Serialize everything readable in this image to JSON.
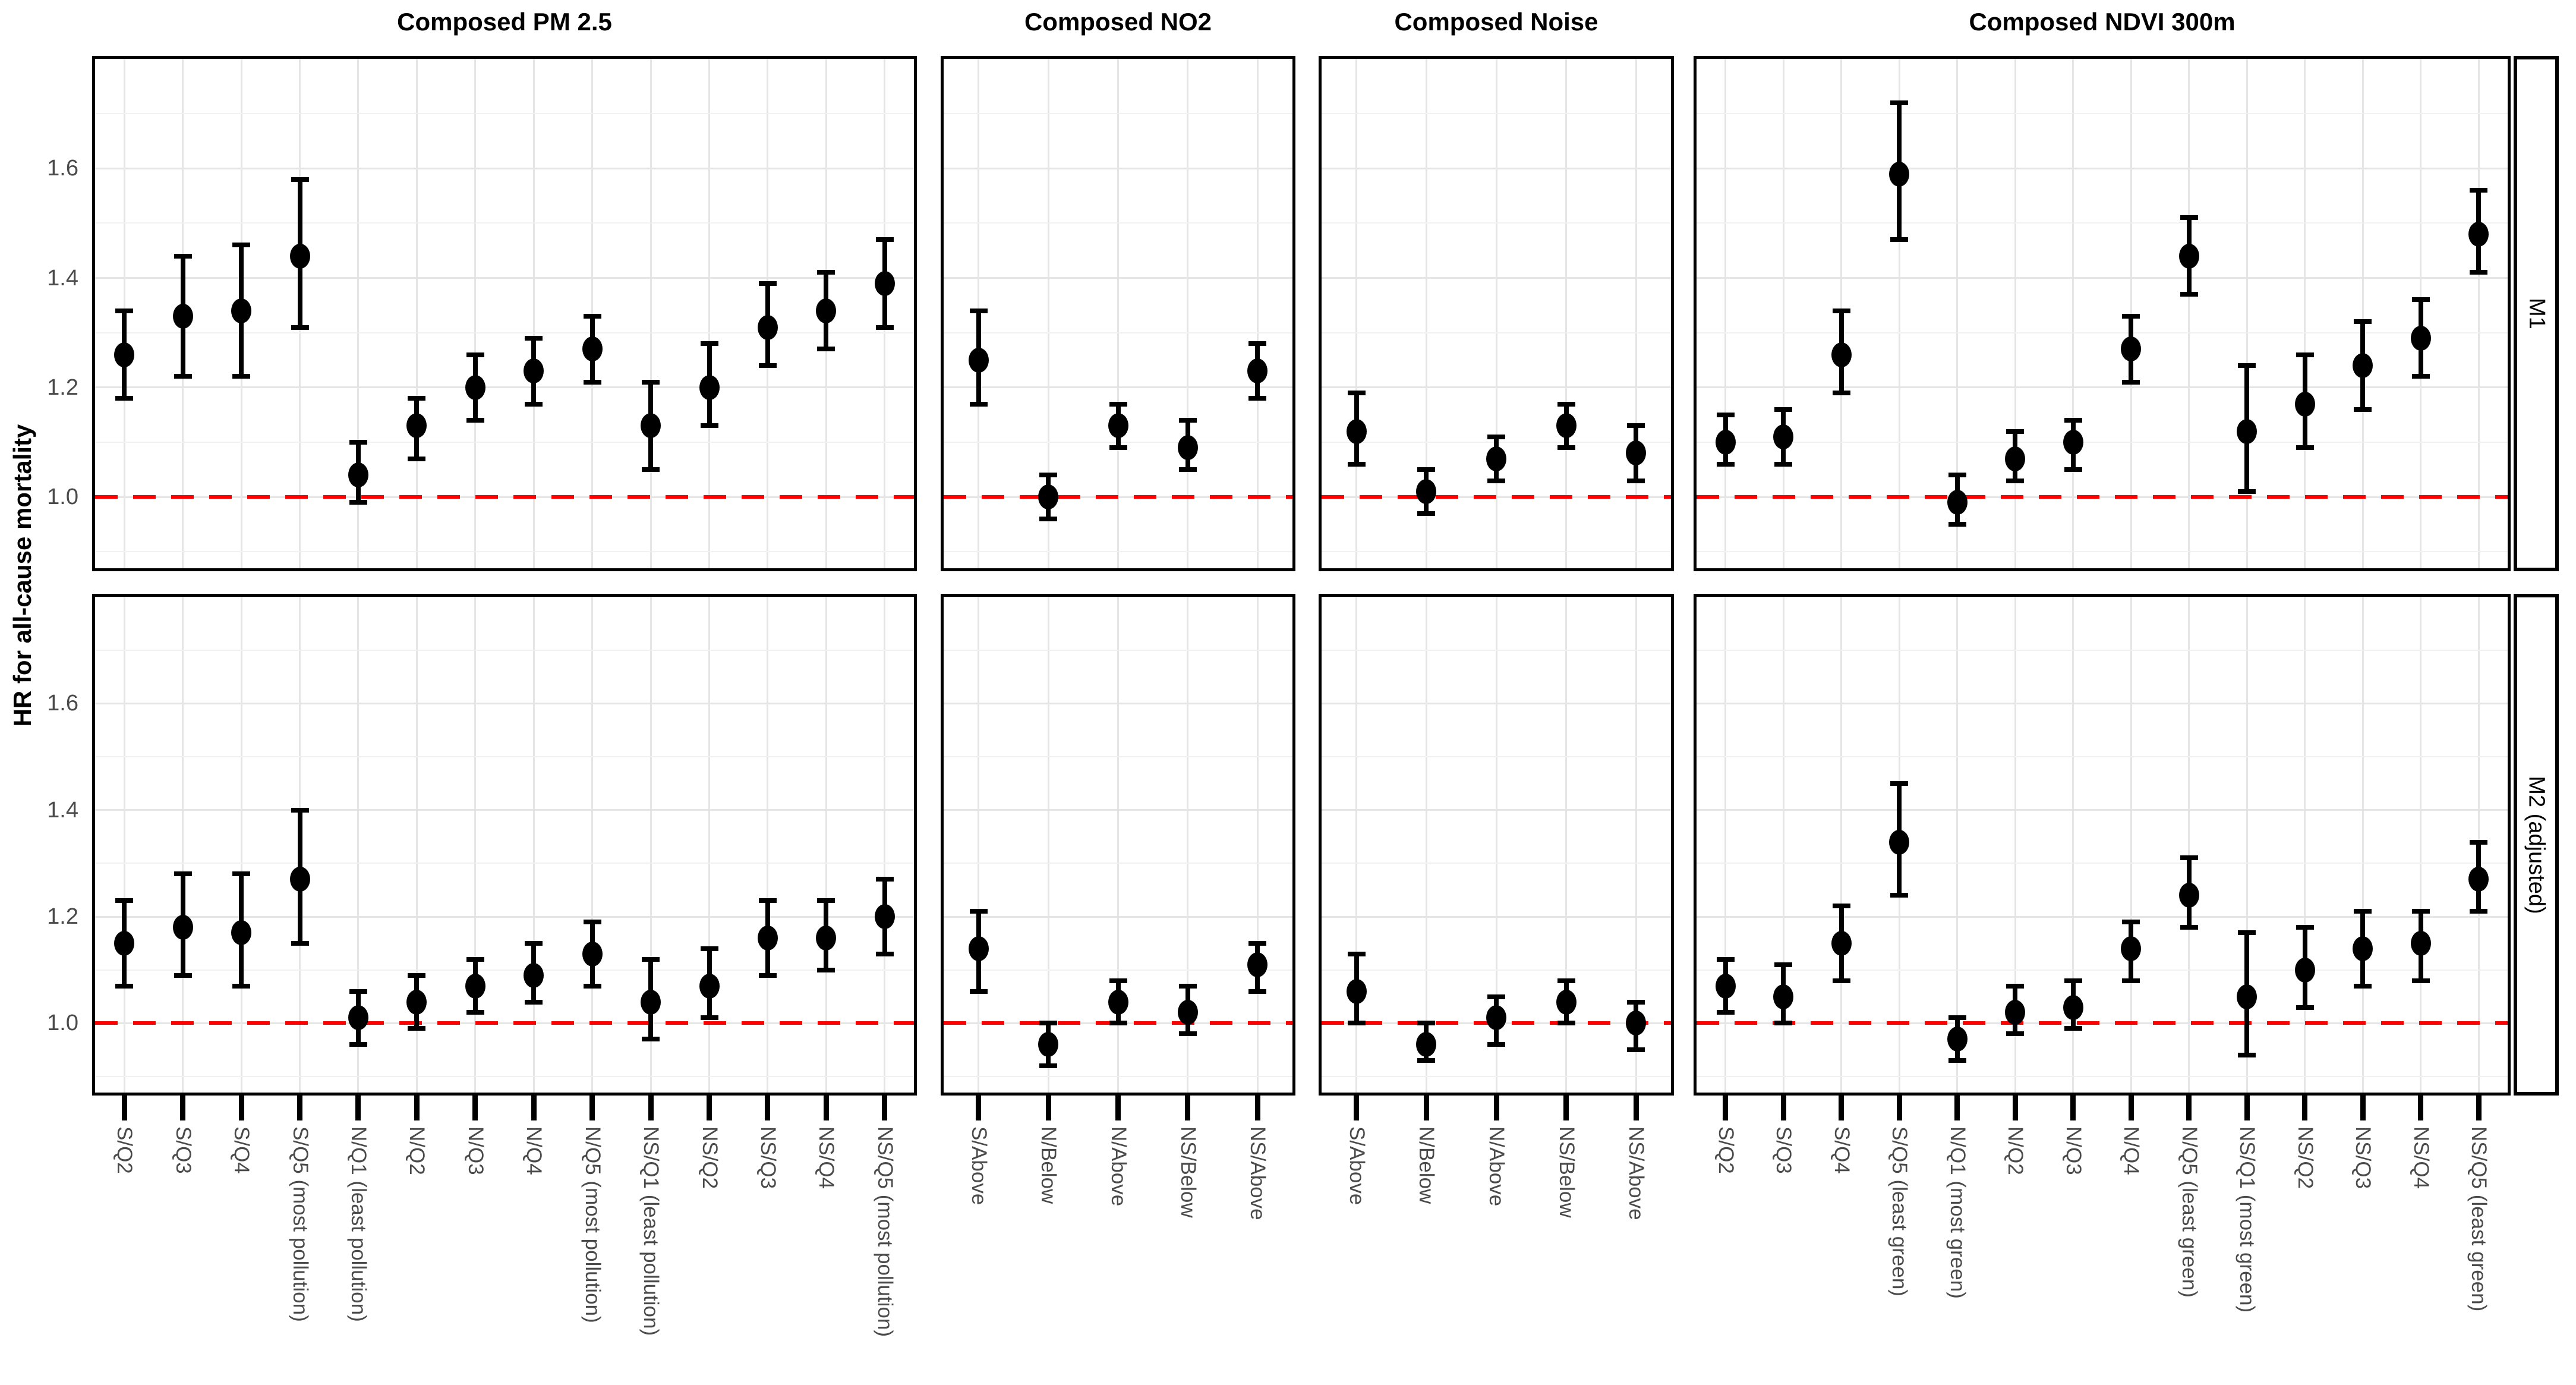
{
  "chart_data": {
    "type": "scatter",
    "subtype": "forest-plot-with-ci",
    "ylabel": "HR for all-cause mortality",
    "y_ticks": [
      1.0,
      1.2,
      1.4,
      1.6
    ],
    "y_tick_labels": [
      "1.0",
      "1.2",
      "1.4",
      "1.6"
    ],
    "y_minor_ticks": [
      0.9,
      1.1,
      1.3,
      1.5,
      1.7
    ],
    "ylim": [
      0.87,
      1.8
    ],
    "grid": true,
    "legend": false,
    "ref_line": {
      "y": 1.0,
      "style": "dashed",
      "color": "#FF0000"
    },
    "colors": {
      "point": "#000000",
      "error_bar": "#000000",
      "ref_line": "#FF0000",
      "grid_major": "#E5E5E5",
      "grid_minor": "#F1F1F1",
      "axis_text": "#4a4a4a",
      "panel_border": "#000000",
      "background": "#FFFFFF"
    },
    "rows": [
      {
        "label": "M1"
      },
      {
        "label": "M2 (adjusted)"
      }
    ],
    "columns": [
      {
        "title": "Composed PM 2.5",
        "categories": [
          "S/Q2",
          "S/Q3",
          "S/Q4",
          "S/Q5 (most pollution)",
          "N/Q1 (least pollution)",
          "N/Q2",
          "N/Q3",
          "N/Q4",
          "N/Q5 (most pollution)",
          "NS/Q1 (least pollution)",
          "NS/Q2",
          "NS/Q3",
          "NS/Q4",
          "NS/Q5 (most pollution)"
        ]
      },
      {
        "title": "Composed NO2",
        "categories": [
          "S/Above",
          "N/Below",
          "N/Above",
          "NS/Below",
          "NS/Above"
        ]
      },
      {
        "title": "Composed Noise",
        "categories": [
          "S/Above",
          "N/Below",
          "N/Above",
          "NS/Below",
          "NS/Above"
        ]
      },
      {
        "title": "Composed NDVI 300m",
        "categories": [
          "S/Q2",
          "S/Q3",
          "S/Q4",
          "S/Q5 (least green)",
          "N/Q1 (most green)",
          "N/Q2",
          "N/Q3",
          "N/Q4",
          "N/Q5 (least green)",
          "NS/Q1 (most green)",
          "NS/Q2",
          "NS/Q3",
          "NS/Q4",
          "NS/Q5 (least green)"
        ]
      }
    ],
    "panels": [
      {
        "row": "M1",
        "column": "Composed PM 2.5",
        "points": [
          {
            "category": "S/Q2",
            "hr": 1.26,
            "ci_low": 1.18,
            "ci_high": 1.34
          },
          {
            "category": "S/Q3",
            "hr": 1.33,
            "ci_low": 1.22,
            "ci_high": 1.44
          },
          {
            "category": "S/Q4",
            "hr": 1.34,
            "ci_low": 1.22,
            "ci_high": 1.46
          },
          {
            "category": "S/Q5 (most pollution)",
            "hr": 1.44,
            "ci_low": 1.31,
            "ci_high": 1.58
          },
          {
            "category": "N/Q1 (least pollution)",
            "hr": 1.04,
            "ci_low": 0.99,
            "ci_high": 1.1
          },
          {
            "category": "N/Q2",
            "hr": 1.13,
            "ci_low": 1.07,
            "ci_high": 1.18
          },
          {
            "category": "N/Q3",
            "hr": 1.2,
            "ci_low": 1.14,
            "ci_high": 1.26
          },
          {
            "category": "N/Q4",
            "hr": 1.23,
            "ci_low": 1.17,
            "ci_high": 1.29
          },
          {
            "category": "N/Q5 (most pollution)",
            "hr": 1.27,
            "ci_low": 1.21,
            "ci_high": 1.33
          },
          {
            "category": "NS/Q1 (least pollution)",
            "hr": 1.13,
            "ci_low": 1.05,
            "ci_high": 1.21
          },
          {
            "category": "NS/Q2",
            "hr": 1.2,
            "ci_low": 1.13,
            "ci_high": 1.28
          },
          {
            "category": "NS/Q3",
            "hr": 1.31,
            "ci_low": 1.24,
            "ci_high": 1.39
          },
          {
            "category": "NS/Q4",
            "hr": 1.34,
            "ci_low": 1.27,
            "ci_high": 1.41
          },
          {
            "category": "NS/Q5 (most pollution)",
            "hr": 1.39,
            "ci_low": 1.31,
            "ci_high": 1.47
          }
        ]
      },
      {
        "row": "M1",
        "column": "Composed NO2",
        "points": [
          {
            "category": "S/Above",
            "hr": 1.25,
            "ci_low": 1.17,
            "ci_high": 1.34
          },
          {
            "category": "N/Below",
            "hr": 1.0,
            "ci_low": 0.96,
            "ci_high": 1.04
          },
          {
            "category": "N/Above",
            "hr": 1.13,
            "ci_low": 1.09,
            "ci_high": 1.17
          },
          {
            "category": "NS/Below",
            "hr": 1.09,
            "ci_low": 1.05,
            "ci_high": 1.14
          },
          {
            "category": "NS/Above",
            "hr": 1.23,
            "ci_low": 1.18,
            "ci_high": 1.28
          }
        ]
      },
      {
        "row": "M1",
        "column": "Composed Noise",
        "points": [
          {
            "category": "S/Above",
            "hr": 1.12,
            "ci_low": 1.06,
            "ci_high": 1.19
          },
          {
            "category": "N/Below",
            "hr": 1.01,
            "ci_low": 0.97,
            "ci_high": 1.05
          },
          {
            "category": "N/Above",
            "hr": 1.07,
            "ci_low": 1.03,
            "ci_high": 1.11
          },
          {
            "category": "NS/Below",
            "hr": 1.13,
            "ci_low": 1.09,
            "ci_high": 1.17
          },
          {
            "category": "NS/Above",
            "hr": 1.08,
            "ci_low": 1.03,
            "ci_high": 1.13
          }
        ]
      },
      {
        "row": "M1",
        "column": "Composed NDVI 300m",
        "points": [
          {
            "category": "S/Q2",
            "hr": 1.1,
            "ci_low": 1.06,
            "ci_high": 1.15
          },
          {
            "category": "S/Q3",
            "hr": 1.11,
            "ci_low": 1.06,
            "ci_high": 1.16
          },
          {
            "category": "S/Q4",
            "hr": 1.26,
            "ci_low": 1.19,
            "ci_high": 1.34
          },
          {
            "category": "S/Q5 (least green)",
            "hr": 1.59,
            "ci_low": 1.47,
            "ci_high": 1.72
          },
          {
            "category": "N/Q1 (most green)",
            "hr": 0.99,
            "ci_low": 0.95,
            "ci_high": 1.04
          },
          {
            "category": "N/Q2",
            "hr": 1.07,
            "ci_low": 1.03,
            "ci_high": 1.12
          },
          {
            "category": "N/Q3",
            "hr": 1.1,
            "ci_low": 1.05,
            "ci_high": 1.14
          },
          {
            "category": "N/Q4",
            "hr": 1.27,
            "ci_low": 1.21,
            "ci_high": 1.33
          },
          {
            "category": "N/Q5 (least green)",
            "hr": 1.44,
            "ci_low": 1.37,
            "ci_high": 1.51
          },
          {
            "category": "NS/Q1 (most green)",
            "hr": 1.12,
            "ci_low": 1.01,
            "ci_high": 1.24
          },
          {
            "category": "NS/Q2",
            "hr": 1.17,
            "ci_low": 1.09,
            "ci_high": 1.26
          },
          {
            "category": "NS/Q3",
            "hr": 1.24,
            "ci_low": 1.16,
            "ci_high": 1.32
          },
          {
            "category": "NS/Q4",
            "hr": 1.29,
            "ci_low": 1.22,
            "ci_high": 1.36
          },
          {
            "category": "NS/Q5 (least green)",
            "hr": 1.48,
            "ci_low": 1.41,
            "ci_high": 1.56
          }
        ]
      },
      {
        "row": "M2 (adjusted)",
        "column": "Composed PM 2.5",
        "points": [
          {
            "category": "S/Q2",
            "hr": 1.15,
            "ci_low": 1.07,
            "ci_high": 1.23
          },
          {
            "category": "S/Q3",
            "hr": 1.18,
            "ci_low": 1.09,
            "ci_high": 1.28
          },
          {
            "category": "S/Q4",
            "hr": 1.17,
            "ci_low": 1.07,
            "ci_high": 1.28
          },
          {
            "category": "S/Q5 (most pollution)",
            "hr": 1.27,
            "ci_low": 1.15,
            "ci_high": 1.4
          },
          {
            "category": "N/Q1 (least pollution)",
            "hr": 1.01,
            "ci_low": 0.96,
            "ci_high": 1.06
          },
          {
            "category": "N/Q2",
            "hr": 1.04,
            "ci_low": 0.99,
            "ci_high": 1.09
          },
          {
            "category": "N/Q3",
            "hr": 1.07,
            "ci_low": 1.02,
            "ci_high": 1.12
          },
          {
            "category": "N/Q4",
            "hr": 1.09,
            "ci_low": 1.04,
            "ci_high": 1.15
          },
          {
            "category": "N/Q5 (most pollution)",
            "hr": 1.13,
            "ci_low": 1.07,
            "ci_high": 1.19
          },
          {
            "category": "NS/Q1 (least pollution)",
            "hr": 1.04,
            "ci_low": 0.97,
            "ci_high": 1.12
          },
          {
            "category": "NS/Q2",
            "hr": 1.07,
            "ci_low": 1.01,
            "ci_high": 1.14
          },
          {
            "category": "NS/Q3",
            "hr": 1.16,
            "ci_low": 1.09,
            "ci_high": 1.23
          },
          {
            "category": "NS/Q4",
            "hr": 1.16,
            "ci_low": 1.1,
            "ci_high": 1.23
          },
          {
            "category": "NS/Q5 (most pollution)",
            "hr": 1.2,
            "ci_low": 1.13,
            "ci_high": 1.27
          }
        ]
      },
      {
        "row": "M2 (adjusted)",
        "column": "Composed NO2",
        "points": [
          {
            "category": "S/Above",
            "hr": 1.14,
            "ci_low": 1.06,
            "ci_high": 1.21
          },
          {
            "category": "N/Below",
            "hr": 0.96,
            "ci_low": 0.92,
            "ci_high": 1.0
          },
          {
            "category": "N/Above",
            "hr": 1.04,
            "ci_low": 1.0,
            "ci_high": 1.08
          },
          {
            "category": "NS/Below",
            "hr": 1.02,
            "ci_low": 0.98,
            "ci_high": 1.07
          },
          {
            "category": "NS/Above",
            "hr": 1.11,
            "ci_low": 1.06,
            "ci_high": 1.15
          }
        ]
      },
      {
        "row": "M2 (adjusted)",
        "column": "Composed Noise",
        "points": [
          {
            "category": "S/Above",
            "hr": 1.06,
            "ci_low": 1.0,
            "ci_high": 1.13
          },
          {
            "category": "N/Below",
            "hr": 0.96,
            "ci_low": 0.93,
            "ci_high": 1.0
          },
          {
            "category": "N/Above",
            "hr": 1.01,
            "ci_low": 0.96,
            "ci_high": 1.05
          },
          {
            "category": "NS/Below",
            "hr": 1.04,
            "ci_low": 1.0,
            "ci_high": 1.08
          },
          {
            "category": "NS/Above",
            "hr": 1.0,
            "ci_low": 0.95,
            "ci_high": 1.04
          }
        ]
      },
      {
        "row": "M2 (adjusted)",
        "column": "Composed NDVI 300m",
        "points": [
          {
            "category": "S/Q2",
            "hr": 1.07,
            "ci_low": 1.02,
            "ci_high": 1.12
          },
          {
            "category": "S/Q3",
            "hr": 1.05,
            "ci_low": 1.0,
            "ci_high": 1.11
          },
          {
            "category": "S/Q4",
            "hr": 1.15,
            "ci_low": 1.08,
            "ci_high": 1.22
          },
          {
            "category": "S/Q5 (least green)",
            "hr": 1.34,
            "ci_low": 1.24,
            "ci_high": 1.45
          },
          {
            "category": "N/Q1 (most green)",
            "hr": 0.97,
            "ci_low": 0.93,
            "ci_high": 1.01
          },
          {
            "category": "N/Q2",
            "hr": 1.02,
            "ci_low": 0.98,
            "ci_high": 1.07
          },
          {
            "category": "N/Q3",
            "hr": 1.03,
            "ci_low": 0.99,
            "ci_high": 1.08
          },
          {
            "category": "N/Q4",
            "hr": 1.14,
            "ci_low": 1.08,
            "ci_high": 1.19
          },
          {
            "category": "N/Q5 (least green)",
            "hr": 1.24,
            "ci_low": 1.18,
            "ci_high": 1.31
          },
          {
            "category": "NS/Q1 (most green)",
            "hr": 1.05,
            "ci_low": 0.94,
            "ci_high": 1.17
          },
          {
            "category": "NS/Q2",
            "hr": 1.1,
            "ci_low": 1.03,
            "ci_high": 1.18
          },
          {
            "category": "NS/Q3",
            "hr": 1.14,
            "ci_low": 1.07,
            "ci_high": 1.21
          },
          {
            "category": "NS/Q4",
            "hr": 1.15,
            "ci_low": 1.08,
            "ci_high": 1.21
          },
          {
            "category": "NS/Q5 (least green)",
            "hr": 1.27,
            "ci_low": 1.21,
            "ci_high": 1.34
          }
        ]
      }
    ]
  }
}
